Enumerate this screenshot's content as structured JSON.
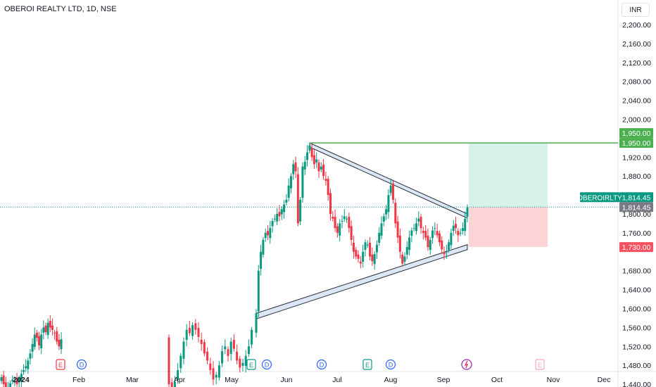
{
  "header": {
    "title": "OBEROI REALTY LTD, 1D, NSE",
    "currency": "INR"
  },
  "colors": {
    "up": "#089981",
    "down": "#f23645",
    "target_line": "#4caf50",
    "target_label_bg": "#4caf50",
    "stop_label_bg": "#f7525f",
    "last_price_bg": "#089981",
    "neutral_label_bg": "#787b86",
    "profit_zone": "#d5f1ea",
    "loss_zone": "#fbd4d6",
    "pattern_fill": "#dbe7f6",
    "pattern_stroke": "#2a2e39"
  },
  "price_axis": {
    "ticks": [
      "2,200.00",
      "2,160.00",
      "2,120.00",
      "2,080.00",
      "2,040.00",
      "2,000.00",
      "1,920.00",
      "1,880.00",
      "1,800.00",
      "1,760.00",
      "1,680.00",
      "1,640.00",
      "1,600.00",
      "1,560.00",
      "1,520.00",
      "1,480.00",
      "1,440.00"
    ]
  },
  "time_axis": {
    "ticks": [
      "2024",
      "Feb",
      "Mar",
      "Apr",
      "May",
      "Jun",
      "Jul",
      "Aug",
      "Sep",
      "Oct",
      "Nov",
      "Dec"
    ]
  },
  "labels": {
    "target_top": "1,950.00",
    "target_bottom": "1,950.00",
    "symbol": "OBEROIRLTY",
    "last_price": "1,814.45",
    "last_price_gray": "1,814.45",
    "stop": "1,730.00"
  },
  "events": [
    {
      "type": "E",
      "month": "Feb",
      "shape": "earnings"
    },
    {
      "type": "D",
      "month": "Feb",
      "shape": "dividend"
    },
    {
      "type": "E",
      "month": "May",
      "shape": "earnings"
    },
    {
      "type": "D",
      "month": "May",
      "shape": "dividend"
    },
    {
      "type": "D",
      "month": "Jun",
      "shape": "dividend"
    },
    {
      "type": "E",
      "month": "Aug",
      "shape": "earnings"
    },
    {
      "type": "D",
      "month": "Aug",
      "shape": "dividend"
    },
    {
      "type": "split",
      "month": "Sep",
      "shape": "split"
    },
    {
      "type": "E",
      "month": "Oct",
      "shape": "earnings-future"
    }
  ],
  "chart_data": {
    "type": "candlestick",
    "symbol": "OBEROI REALTY LTD",
    "interval": "1D",
    "exchange": "NSE",
    "ylim": [
      1420,
      2230
    ],
    "last_price": 1814.45,
    "long_position": {
      "entry": 1814.45,
      "target": 1950.0,
      "stop": 1730.0
    },
    "horizontal_level": 1950.0,
    "triangle_upper": [
      [
        "Jun-17",
        1950
      ],
      [
        "Sep-13",
        1800
      ]
    ],
    "triangle_lower": [
      [
        "May-14",
        1585
      ],
      [
        "Sep-13",
        1725
      ]
    ],
    "closes": [
      1455,
      1440,
      1425,
      1430,
      1442,
      1450,
      1445,
      1440,
      1452,
      1462,
      1470,
      1478,
      1490,
      1505,
      1525,
      1545,
      1538,
      1522,
      1545,
      1560,
      1550,
      1570,
      1560,
      1555,
      1548,
      1530,
      1520,
      1535,
      1440,
      1432,
      1445,
      1470,
      1500,
      1530,
      1555,
      1548,
      1565,
      1555,
      1540,
      1525,
      1505,
      1490,
      1470,
      1450,
      1460,
      1480,
      1510,
      1520,
      1500,
      1530,
      1515,
      1490,
      1475,
      1485,
      1500,
      1520,
      1555,
      1590,
      1680,
      1720,
      1745,
      1760,
      1755,
      1770,
      1785,
      1790,
      1800,
      1795,
      1810,
      1820,
      1830,
      1860,
      1880,
      1905,
      1890,
      1780,
      1830,
      1900,
      1910,
      1930,
      1945,
      1920,
      1905,
      1915,
      1890,
      1900,
      1880,
      1870,
      1840,
      1800,
      1790,
      1770,
      1760,
      1780,
      1785,
      1795,
      1790,
      1770,
      1745,
      1720,
      1710,
      1705,
      1695,
      1720,
      1740,
      1735,
      1710,
      1700,
      1715,
      1735,
      1760,
      1780,
      1795,
      1810,
      1840,
      1860,
      1830,
      1780,
      1750,
      1720,
      1695,
      1710,
      1730,
      1750,
      1765,
      1770,
      1780,
      1790,
      1770,
      1760,
      1750,
      1730,
      1745,
      1765,
      1770,
      1755,
      1740,
      1725,
      1715,
      1720,
      1740,
      1760,
      1775,
      1770,
      1755,
      1760,
      1770,
      1790,
      1814
    ]
  }
}
